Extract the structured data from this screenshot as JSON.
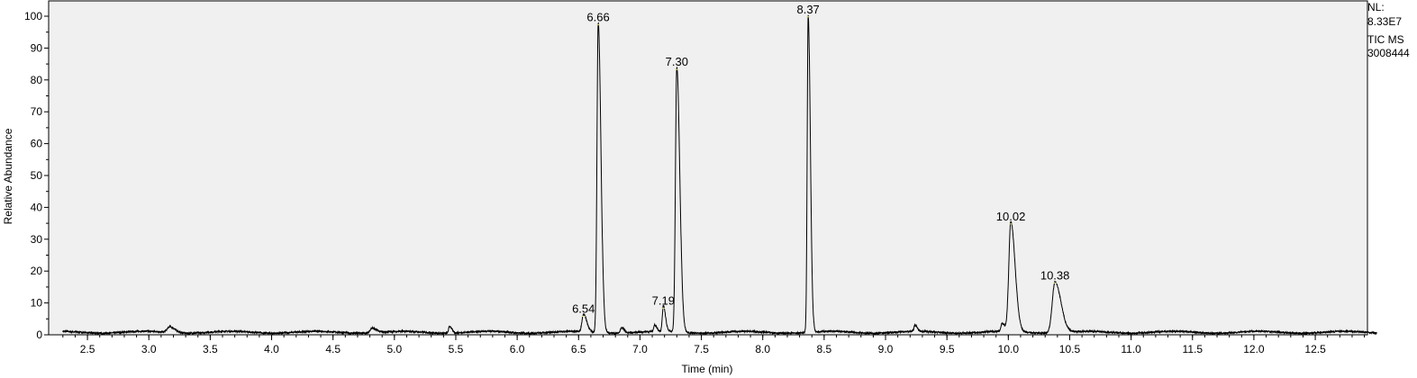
{
  "info": {
    "nl_label": "NL:",
    "nl_value": "8.33E7",
    "scan_filter": "TIC  MS",
    "sample_id": "3008444"
  },
  "chart_data": {
    "type": "line",
    "title": "",
    "xlabel": "Time (min)",
    "ylabel": "Relative Abundance",
    "xlim": [
      2.25,
      13.0
    ],
    "ylim": [
      0,
      100
    ],
    "xticks": [
      "2.5",
      "3.0",
      "3.5",
      "4.0",
      "4.5",
      "5.0",
      "5.5",
      "6.0",
      "6.5",
      "7.0",
      "7.5",
      "8.0",
      "8.5",
      "9.0",
      "9.5",
      "10.0",
      "10.5",
      "11.0",
      "11.5",
      "12.0",
      "12.5"
    ],
    "yticks": [
      "0",
      "10",
      "20",
      "30",
      "40",
      "50",
      "60",
      "70",
      "80",
      "90",
      "100"
    ],
    "grid": false,
    "baseline": 0.8,
    "peaks": [
      {
        "label": "6.54",
        "rt": 6.54,
        "height": 5.5,
        "width": 0.012
      },
      {
        "label": "6.66",
        "rt": 6.66,
        "height": 97,
        "width": 0.01
      },
      {
        "label": "7.19",
        "rt": 7.19,
        "height": 8,
        "width": 0.008
      },
      {
        "label": "7.30",
        "rt": 7.3,
        "height": 83,
        "width": 0.011
      },
      {
        "label": "8.37",
        "rt": 8.37,
        "height": 99.5,
        "width": 0.008
      },
      {
        "label": "10.02",
        "rt": 10.02,
        "height": 34.5,
        "width": 0.016
      },
      {
        "label": "10.38",
        "rt": 10.38,
        "height": 16,
        "width": 0.022
      }
    ],
    "minor_peaks": [
      {
        "rt": 3.17,
        "height": 1.8,
        "width": 0.02
      },
      {
        "rt": 4.82,
        "height": 1.5,
        "width": 0.015
      },
      {
        "rt": 5.45,
        "height": 2.2,
        "width": 0.008
      },
      {
        "rt": 6.85,
        "height": 1.7,
        "width": 0.01
      },
      {
        "rt": 7.12,
        "height": 2.0,
        "width": 0.008
      },
      {
        "rt": 9.24,
        "height": 2.0,
        "width": 0.008
      },
      {
        "rt": 9.95,
        "height": 2.5,
        "width": 0.01
      }
    ]
  },
  "colors": {
    "plot_bg": "#f0f0f0",
    "trace": "#000000",
    "axis": "#000000",
    "marker": "#e8e8a8"
  }
}
